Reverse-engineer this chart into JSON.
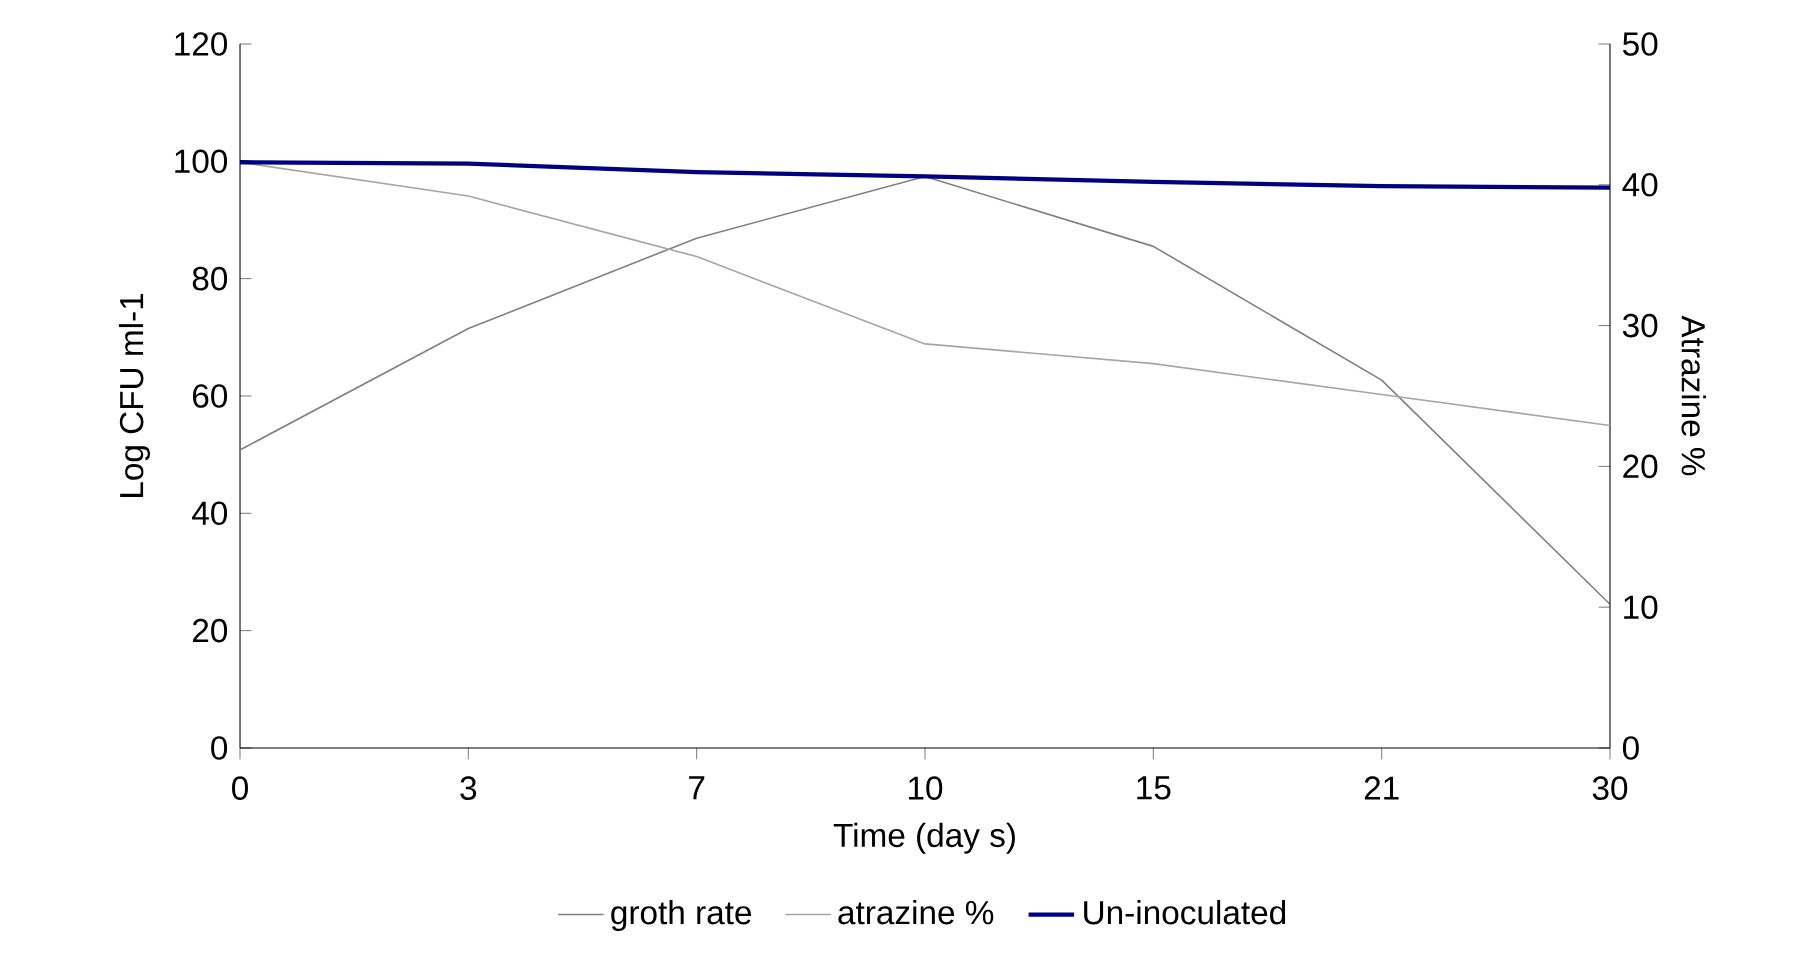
{
  "chart_data": {
    "type": "line",
    "xlabel": "Time (day s)",
    "ylabel": "Log CFU ml-1",
    "y2label": "Atrazine %",
    "categories": [
      "0",
      "3",
      "7",
      "10",
      "15",
      "21",
      "30"
    ],
    "series": [
      {
        "name": "groth rate",
        "color": "#808080",
        "values": [
          50.8,
          71.5,
          86.9,
          97.4,
          85.5,
          62.7,
          24.5
        ]
      },
      {
        "name": "atrazine %",
        "color": "#a6a6a6",
        "axis": "y2",
        "values": [
          41.6,
          39.2,
          34.9,
          28.7,
          27.3,
          25.1,
          22.9
        ]
      },
      {
        "name": "Un-inoculated",
        "color": "#000080",
        "axis": "y2",
        "values": [
          41.6,
          41.5,
          40.9,
          40.6,
          40.2,
          39.9,
          39.8
        ]
      }
    ],
    "ylim": [
      0,
      120
    ],
    "yticks": [
      0,
      20,
      40,
      60,
      80,
      100,
      120
    ],
    "y2lim": [
      0,
      50
    ],
    "y2ticks": [
      0,
      10,
      20,
      30,
      40,
      50
    ],
    "grid": false,
    "legend": "bottom",
    "marker": "none"
  }
}
